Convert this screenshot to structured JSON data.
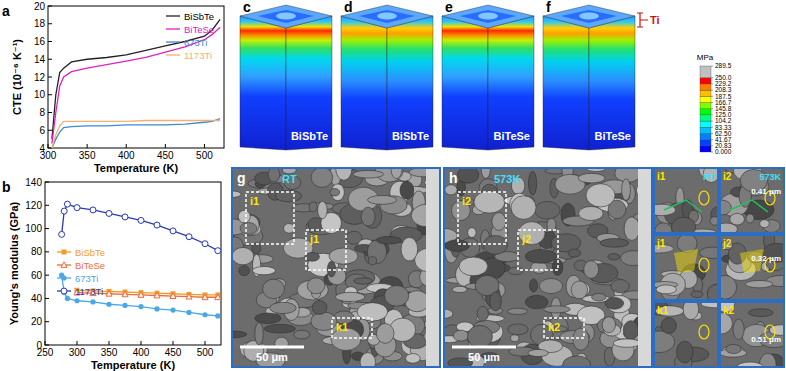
{
  "chart_data": [
    {
      "type": "line",
      "panel": "a",
      "x_label": "Temperature (K)",
      "y_label": "CTE (10⁻⁶ K⁻¹)",
      "x": [
        305,
        310,
        315,
        320,
        330,
        350,
        375,
        400,
        425,
        450,
        475,
        500,
        510,
        520
      ],
      "series": [
        {
          "name": "BiSbTe",
          "color": "#222222",
          "marker": "none",
          "values": [
            5,
            10,
            12.5,
            13,
            13.7,
            14,
            14.2,
            14.5,
            15,
            15.5,
            16,
            16.6,
            17.3,
            18.5
          ]
        },
        {
          "name": "BiTeSe",
          "color": "#e020c0",
          "marker": "none",
          "values": [
            4.5,
            8,
            11,
            12,
            12.6,
            13,
            13.4,
            13.8,
            14.2,
            14.8,
            15.4,
            16.2,
            16.8,
            17.6
          ]
        },
        {
          "name": "673Ti",
          "color": "#3a8ad8",
          "marker": "none",
          "values": [
            4,
            5,
            5.8,
            6.3,
            6.4,
            6.5,
            6.5,
            6.6,
            6.6,
            6.6,
            6.7,
            6.9,
            7.0,
            7.3
          ]
        },
        {
          "name": "1173Ti",
          "color": "#f5b070",
          "marker": "none",
          "values": [
            4,
            5.5,
            6.5,
            7,
            7,
            7,
            7,
            7,
            7.1,
            7.1,
            7.1,
            7.1,
            7.1,
            7.1
          ]
        }
      ],
      "xlim": [
        300,
        525
      ],
      "xticks": [
        300,
        350,
        400,
        450,
        500
      ],
      "ylim": [
        4,
        20
      ],
      "yticks": [
        4,
        6,
        8,
        10,
        12,
        14,
        16,
        18,
        20
      ],
      "legend": "upper right"
    },
    {
      "type": "line",
      "panel": "b",
      "x_label": "Temperature (K)",
      "y_label": "Young's modulus (GPa)",
      "x": [
        276,
        280,
        285,
        300,
        325,
        350,
        375,
        400,
        425,
        450,
        475,
        500,
        520
      ],
      "series": [
        {
          "name": "BiSbTe",
          "color": "#f39a2a",
          "marker": "square",
          "values": [
            null,
            null,
            null,
            47,
            46.5,
            46,
            45.5,
            45,
            44.5,
            44,
            43.5,
            43,
            43
          ]
        },
        {
          "name": "BiTeSe",
          "color": "#f06a3a",
          "marker": "open-triangle",
          "values": [
            null,
            null,
            null,
            45,
            44.5,
            44,
            43.5,
            43,
            42.5,
            42,
            41.5,
            41,
            41
          ]
        },
        {
          "name": "673Ti",
          "color": "#4aa8e8",
          "marker": "circle",
          "values": [
            60,
            45,
            40,
            38,
            37,
            35,
            34,
            33,
            31,
            30,
            28,
            26,
            25
          ]
        },
        {
          "name": "1173Ti",
          "color": "#2a3ab8",
          "marker": "open-circle",
          "values": [
            95,
            115,
            121,
            118,
            116,
            113,
            110,
            107,
            103,
            98,
            93,
            87,
            81
          ]
        }
      ],
      "xlim": [
        250,
        525
      ],
      "xticks": [
        250,
        300,
        350,
        400,
        450,
        500
      ],
      "ylim": [
        0,
        140
      ],
      "yticks": [
        0,
        20,
        40,
        60,
        80,
        100,
        120,
        140
      ],
      "legend": "center left"
    }
  ],
  "panels": {
    "simulations": [
      {
        "label": "c",
        "material": "BiSbTe"
      },
      {
        "label": "d",
        "material": "BiSbTe"
      },
      {
        "label": "e",
        "material": "BiTeSe"
      },
      {
        "label": "f",
        "material": "BiTeSe",
        "annotation": "Ti"
      }
    ],
    "colorbar": {
      "unit": "MPa",
      "range": [
        0,
        289.5
      ],
      "ticks": [
        {
          "value": 0,
          "label": "0.000"
        },
        20.83,
        41.67,
        {
          "value": 62.5,
          "label": "62.50"
        },
        83.33,
        104.2,
        {
          "value": 125,
          "label": "125.0"
        },
        145.8,
        166.7,
        187.5,
        208.3,
        229.2,
        {
          "value": 250,
          "label": "250.0"
        },
        289.5
      ]
    },
    "sem": [
      {
        "label": "g",
        "condition": "RT",
        "scale_bar": "50 μm",
        "boxes": [
          "i1",
          "j1",
          "k1"
        ]
      },
      {
        "label": "h",
        "condition": "573K",
        "scale_bar": "50 μm",
        "boxes": [
          "i2",
          "j2",
          "k2"
        ]
      }
    ],
    "insets": [
      {
        "label": "i1",
        "condition": "RT"
      },
      {
        "label": "i2",
        "condition": "573K",
        "measurement": "0.41 μm"
      },
      {
        "label": "j1"
      },
      {
        "label": "j2",
        "measurement": "0.32 μm"
      },
      {
        "label": "k1"
      },
      {
        "label": "k2",
        "measurement": "0.51 μm"
      }
    ]
  }
}
